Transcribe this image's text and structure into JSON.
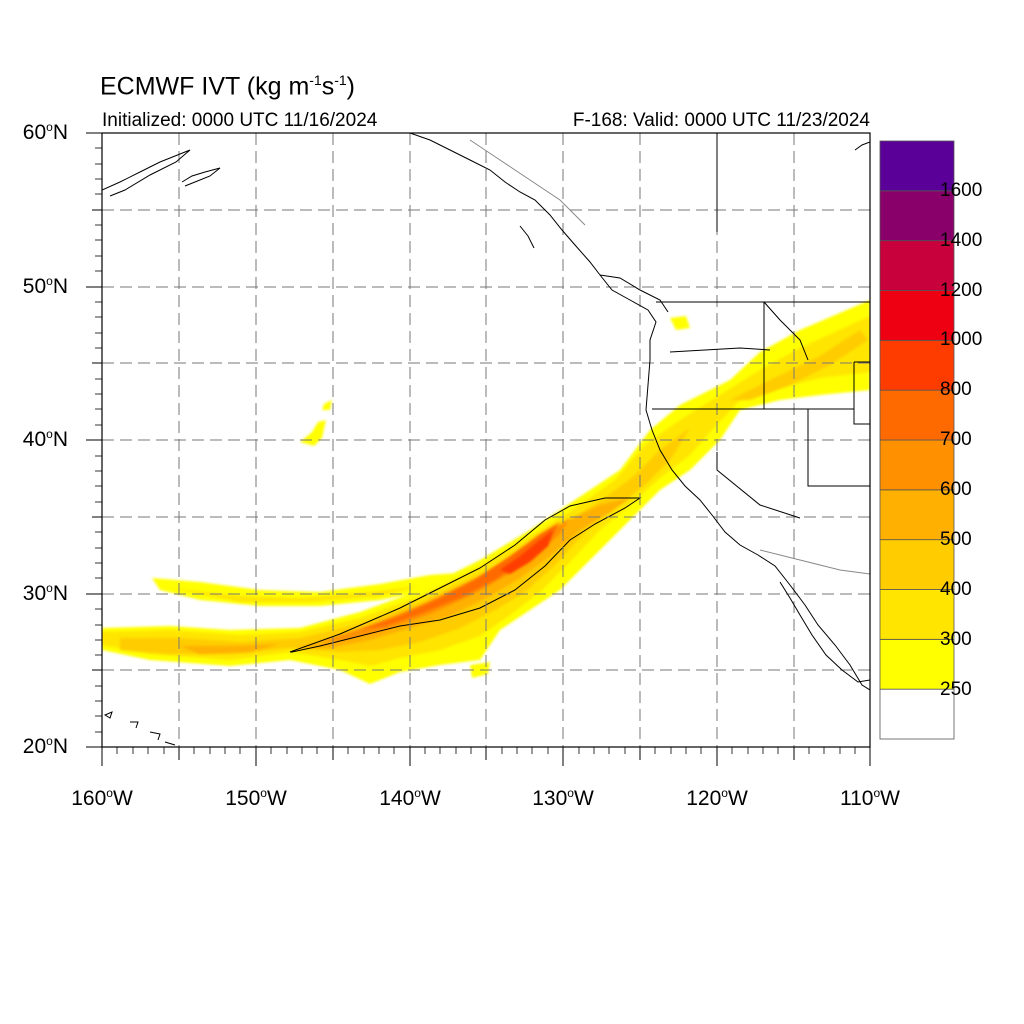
{
  "title": {
    "model": "ECMWF IVT",
    "units_prefix": "(kg m",
    "exp1": "-1",
    "units_mid": "s",
    "exp2": "-1",
    "units_suffix": ")"
  },
  "subtitle_left": "Initialized: 0000 UTC 11/16/2024",
  "subtitle_right": "F-168: Valid: 0000 UTC 11/23/2024",
  "degree_symbol": "o",
  "lat_labels": [
    {
      "value": "60",
      "hemi": "N"
    },
    {
      "value": "50",
      "hemi": "N"
    },
    {
      "value": "40",
      "hemi": "N"
    },
    {
      "value": "30",
      "hemi": "N"
    },
    {
      "value": "20",
      "hemi": "N"
    }
  ],
  "lon_labels": [
    {
      "value": "160",
      "hemi": "W"
    },
    {
      "value": "150",
      "hemi": "W"
    },
    {
      "value": "140",
      "hemi": "W"
    },
    {
      "value": "130",
      "hemi": "W"
    },
    {
      "value": "120",
      "hemi": "W"
    },
    {
      "value": "110",
      "hemi": "W"
    }
  ],
  "map_extent": {
    "lon_min": -160,
    "lon_max": -110,
    "lat_min": 20,
    "lat_max": 60
  },
  "grid": "dashed every 5 degrees",
  "colorbar": {
    "labels": [
      "1600",
      "1400",
      "1200",
      "1000",
      "800",
      "700",
      "600",
      "500",
      "400",
      "300",
      "250"
    ],
    "colors_bottom_to_top": [
      "#ffffff",
      "#ffff00",
      "#ffe500",
      "#ffcc00",
      "#ffb000",
      "#ff9000",
      "#ff6a00",
      "#ff3c00",
      "#ee0012",
      "#c8003c",
      "#8a006a",
      "#5a0099"
    ]
  },
  "chart_data": {
    "type": "heatmap",
    "field": "Integrated Vapor Transport",
    "units": "kg m-1 s-1",
    "levels": [
      250,
      300,
      400,
      500,
      600,
      700,
      800,
      1000,
      1200,
      1400,
      1600
    ],
    "xlim": [
      -160,
      -110
    ],
    "ylim": [
      20,
      60
    ],
    "features": [
      {
        "name": "atmospheric-river-core",
        "max_level": 800,
        "axis_lon": [
          -147.5,
          -130,
          -125
        ],
        "axis_lat": [
          26.2,
          35.4,
          36.2
        ]
      },
      {
        "name": "ivt-500-contour-band",
        "level": 500
      }
    ]
  }
}
